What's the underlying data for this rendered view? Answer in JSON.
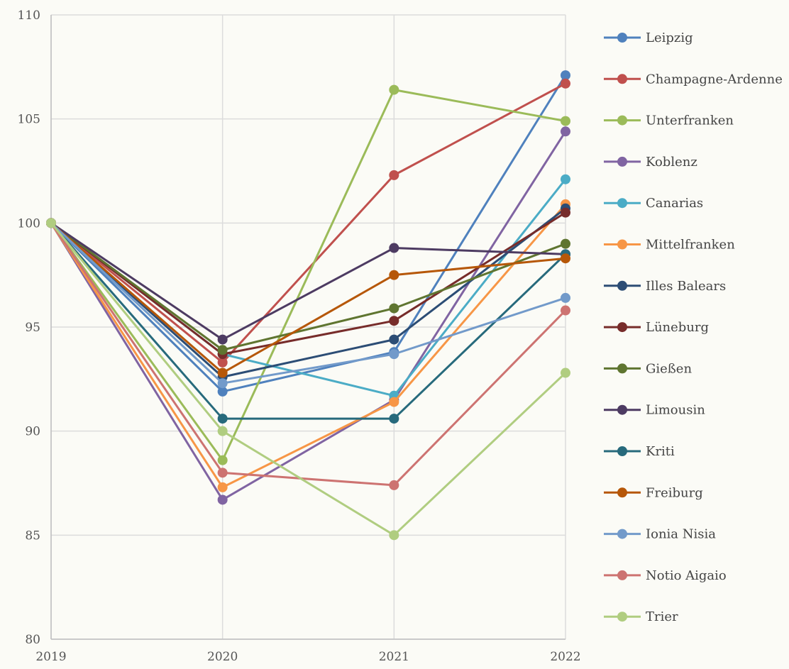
{
  "chart_data": {
    "type": "line",
    "title": "",
    "xlabel": "",
    "ylabel": "",
    "x": [
      "2019",
      "2020",
      "2021",
      "2022"
    ],
    "ylim": [
      80,
      110
    ],
    "yticks": [
      80,
      85,
      90,
      95,
      100,
      105,
      110
    ],
    "grid": true,
    "legend_position": "right",
    "series": [
      {
        "name": "Leipzig",
        "color": "#4f81bd",
        "values": [
          100,
          91.9,
          93.8,
          107.1
        ]
      },
      {
        "name": "Champagne-Ardenne",
        "color": "#c0504d",
        "values": [
          100,
          93.3,
          102.3,
          106.7
        ]
      },
      {
        "name": "Unterfranken",
        "color": "#9bbb59",
        "values": [
          100,
          88.6,
          106.4,
          104.9
        ]
      },
      {
        "name": "Koblenz",
        "color": "#8064a2",
        "values": [
          100,
          86.7,
          91.5,
          104.4
        ]
      },
      {
        "name": "Canarias",
        "color": "#4bacc6",
        "values": [
          100,
          93.7,
          91.7,
          102.1
        ]
      },
      {
        "name": "Mittelfranken",
        "color": "#f79646",
        "values": [
          100,
          87.3,
          91.4,
          100.9
        ]
      },
      {
        "name": "Illes Balears",
        "color": "#2c4d75",
        "values": [
          100,
          92.6,
          94.4,
          100.7
        ]
      },
      {
        "name": "Lüneburg",
        "color": "#772c2a",
        "values": [
          100,
          93.7,
          95.3,
          100.5
        ]
      },
      {
        "name": "Gießen",
        "color": "#5f7530",
        "values": [
          100,
          93.9,
          95.9,
          99.0
        ]
      },
      {
        "name": "Limousin",
        "color": "#4d3b62",
        "values": [
          100,
          94.4,
          98.8,
          98.5
        ]
      },
      {
        "name": "Kriti",
        "color": "#276a7c",
        "values": [
          100,
          90.6,
          90.6,
          98.5
        ]
      },
      {
        "name": "Freiburg",
        "color": "#b65708",
        "values": [
          100,
          92.8,
          97.5,
          98.3
        ]
      },
      {
        "name": "Ionia Nisia",
        "color": "#729aca",
        "values": [
          100,
          92.3,
          93.7,
          96.4
        ]
      },
      {
        "name": "Notio Aigaio",
        "color": "#cd7371",
        "values": [
          100,
          88.0,
          87.4,
          95.8
        ]
      },
      {
        "name": "Trier",
        "color": "#b0cd80",
        "values": [
          100,
          90.0,
          85.0,
          92.8
        ]
      }
    ]
  }
}
